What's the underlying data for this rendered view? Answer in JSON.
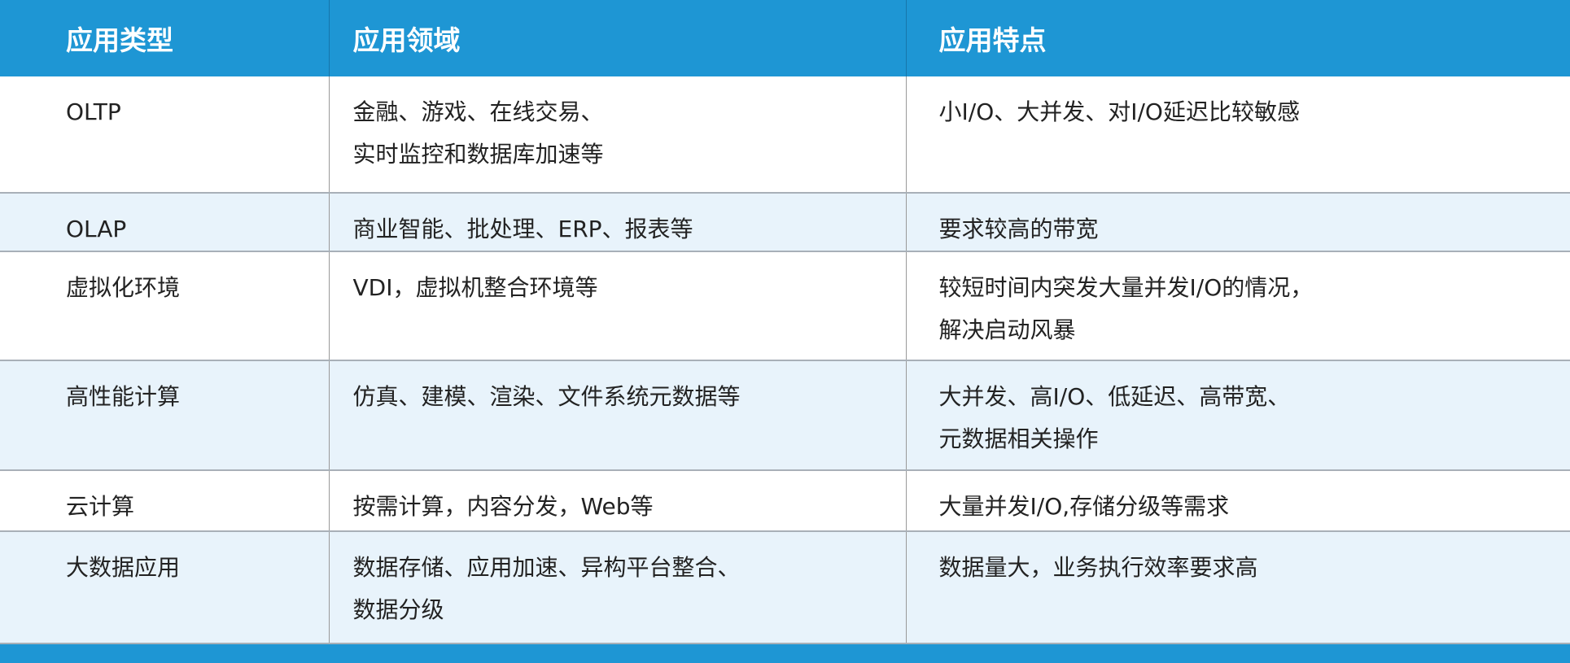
{
  "headers": [
    "应用类型",
    "应用领域",
    "应用特点"
  ],
  "rows": [
    {
      "type": "OLTP",
      "field": "金融、游戏、在线交易、\n实时监控和数据库加速等",
      "feature": "小I/O、大并发、对I/O延迟比较敏感"
    },
    {
      "type": "OLAP",
      "field": "商业智能、批处理、ERP、报表等",
      "feature": "要求较高的带宽"
    },
    {
      "type": "虚拟化环境",
      "field": "VDI，虚拟机整合环境等",
      "feature": "较短时间内突发大量并发I/O的情况，\n解决启动风暴"
    },
    {
      "type": "高性能计算",
      "field": "仿真、建模、渲染、文件系统元数据等",
      "feature": "大并发、高I/O、低延迟、高带宽、\n元数据相关操作"
    },
    {
      "type": "云计算",
      "field": "按需计算，内容分发，Web等",
      "feature": "大量并发I/O,存储分级等需求"
    },
    {
      "type": "大数据应用",
      "field": "数据存储、应用加速、异构平台整合、\n数据分级",
      "feature": "数据量大，业务执行效率要求高"
    }
  ],
  "colors": {
    "header": "#1e96d4",
    "alt_row": "#e8f3fb"
  }
}
